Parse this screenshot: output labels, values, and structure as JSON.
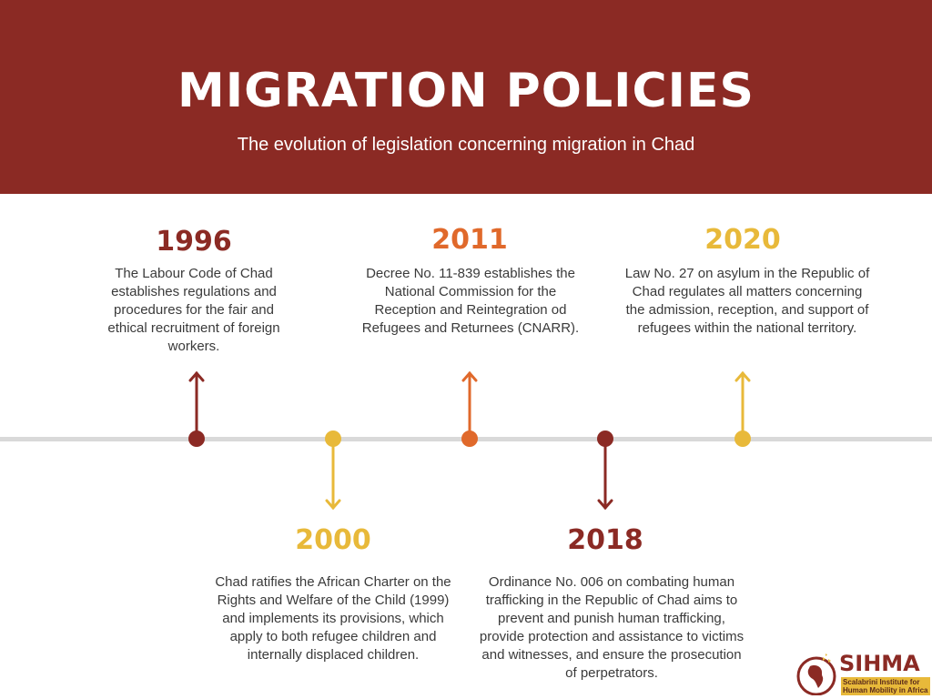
{
  "header": {
    "title": "MIGRATION POLICIES",
    "subtitle": "The evolution of legislation concerning migration in Chad"
  },
  "colors": {
    "header_bg": "#8b2a24",
    "dark_red": "#8b2a24",
    "orange": "#e0692b",
    "yellow": "#e8b93a",
    "axis": "#d9d9d9"
  },
  "events": [
    {
      "year": "1996",
      "position": "above",
      "color": "#8b2a24",
      "text": "The Labour Code of Chad establishes regulations and procedures for the fair and ethical recruitment of foreign workers."
    },
    {
      "year": "2000",
      "position": "below",
      "color": "#e8b93a",
      "text": "Chad ratifies the African Charter on the Rights and Welfare of the Child (1999) and implements its provisions, which apply to both refugee children and internally displaced children."
    },
    {
      "year": "2011",
      "position": "above",
      "color": "#e0692b",
      "text": "Decree No. 11-839 establishes the National Commission for the Reception and Reintegration od Refugees and Returnees (CNARR)."
    },
    {
      "year": "2018",
      "position": "below",
      "color": "#8b2a24",
      "text": "Ordinance No. 006 on combating human trafficking in the Republic of Chad aims to prevent and punish human trafficking, provide protection and assistance to victims and witnesses, and ensure the prosecution of perpetrators."
    },
    {
      "year": "2020",
      "position": "above",
      "color": "#e8b93a",
      "text": "Law No. 27 on asylum in the Republic of Chad regulates all matters concerning the admission, reception, and support of refugees within the national territory."
    }
  ],
  "logo": {
    "name": "SIHMA",
    "subtitle": "Scalabrini Institute for Human Mobility in Africa"
  }
}
